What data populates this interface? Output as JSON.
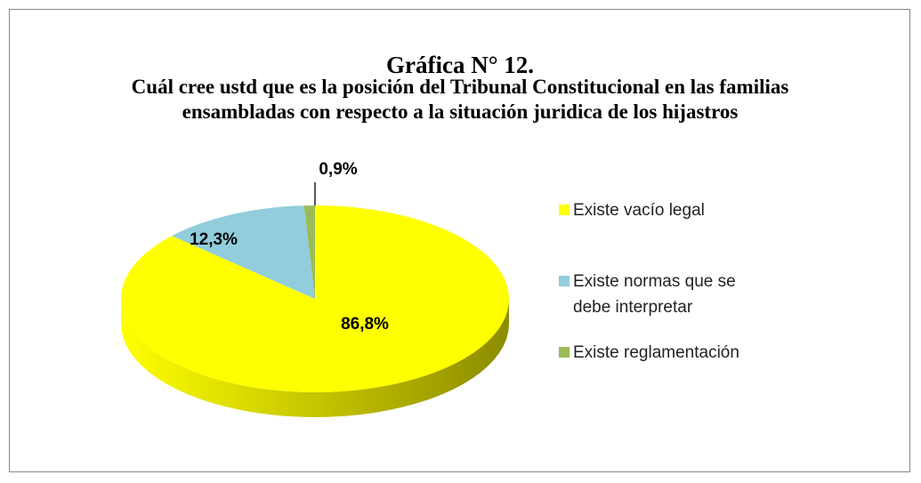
{
  "chart_data": {
    "type": "pie",
    "title": "Gráfica N° 12.",
    "subtitle": "Cuál cree ustd que es la posición del Tribunal Constitucional en las familias ensambladas con respecto a la situación juridica de los hijastros",
    "categories": [
      "Existe vacío legal",
      "Existe normas que se debe interpretar",
      "Existe reglamentación"
    ],
    "values": [
      86.8,
      12.3,
      0.9
    ],
    "value_labels": [
      "86,8%",
      "12,3%",
      "0,9%"
    ],
    "colors": [
      "#ffff00",
      "#92cddc",
      "#9bbb59"
    ],
    "legend": "right"
  }
}
